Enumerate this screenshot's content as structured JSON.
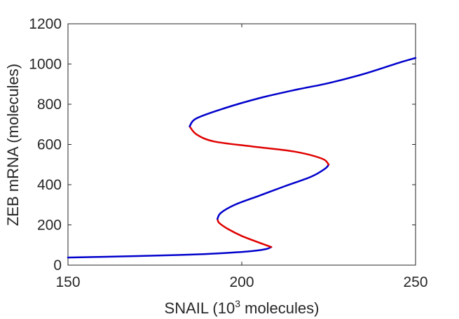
{
  "chart_data": {
    "type": "line",
    "xlabel": "SNAIL (10",
    "xlabel_sup": "3",
    "xlabel_suffix": " molecules)",
    "ylabel": "ZEB mRNA (molecules)",
    "xlim": [
      150,
      250
    ],
    "ylim": [
      0,
      1200
    ],
    "xticks": [
      "150",
      "200",
      "250"
    ],
    "yticks": [
      "0",
      "200",
      "400",
      "600",
      "800",
      "1000",
      "1200"
    ],
    "grid": false,
    "series": [
      {
        "stability": "stable",
        "color": "#0000cc",
        "points": [
          [
            150,
            38
          ],
          [
            170,
            45
          ],
          [
            185,
            52
          ],
          [
            195,
            60
          ],
          [
            203,
            70
          ],
          [
            207,
            80
          ],
          [
            208.5,
            90
          ]
        ]
      },
      {
        "stability": "unstable",
        "color": "#e00000",
        "points": [
          [
            208.5,
            90
          ],
          [
            205,
            112
          ],
          [
            200,
            145
          ],
          [
            196,
            180
          ],
          [
            193.5,
            210
          ],
          [
            193,
            230
          ]
        ]
      },
      {
        "stability": "stable",
        "color": "#0000cc",
        "points": [
          [
            193,
            230
          ],
          [
            194,
            260
          ],
          [
            198,
            300
          ],
          [
            205,
            345
          ],
          [
            212,
            390
          ],
          [
            220,
            440
          ],
          [
            224,
            480
          ],
          [
            225,
            500
          ]
        ]
      },
      {
        "stability": "unstable",
        "color": "#e00000",
        "points": [
          [
            225,
            500
          ],
          [
            223,
            530
          ],
          [
            215,
            565
          ],
          [
            203,
            590
          ],
          [
            192,
            615
          ],
          [
            187,
            650
          ],
          [
            185,
            690
          ]
        ]
      },
      {
        "stability": "stable",
        "color": "#0000cc",
        "points": [
          [
            185,
            690
          ],
          [
            187,
            730
          ],
          [
            195,
            780
          ],
          [
            205,
            830
          ],
          [
            215,
            870
          ],
          [
            225,
            905
          ],
          [
            235,
            950
          ],
          [
            245,
            1005
          ],
          [
            250,
            1030
          ]
        ]
      }
    ]
  }
}
